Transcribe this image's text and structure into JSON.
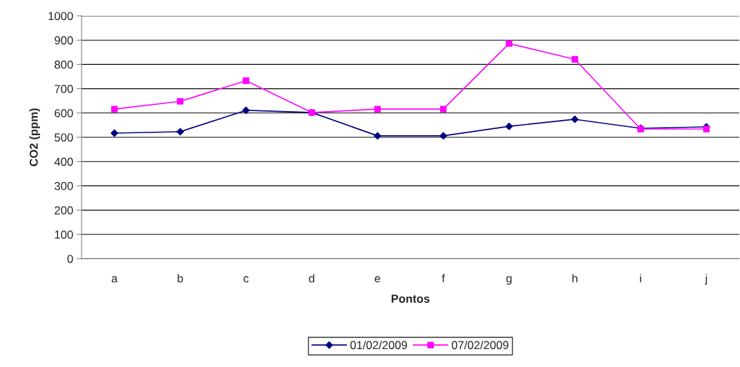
{
  "chart_data": {
    "type": "line",
    "xlabel": "Pontos",
    "ylabel": "CO2 (ppm)",
    "categories": [
      "a",
      "b",
      "c",
      "d",
      "e",
      "f",
      "g",
      "h",
      "i",
      "j"
    ],
    "series": [
      {
        "name": "01/02/2009",
        "color": "#000080",
        "marker": "diamond",
        "values": [
          517,
          523,
          611,
          602,
          506,
          506,
          545,
          574,
          537,
          543
        ]
      },
      {
        "name": "07/02/2009",
        "color": "#ff00ff",
        "marker": "square",
        "values": [
          616,
          648,
          733,
          602,
          616,
          616,
          886,
          821,
          534,
          534
        ]
      }
    ],
    "ylim": [
      0,
      1000
    ],
    "yticks": [
      0,
      100,
      200,
      300,
      400,
      500,
      600,
      700,
      800,
      900,
      1000
    ],
    "grid": "y",
    "legend": "bottom",
    "line_style": "solid"
  }
}
